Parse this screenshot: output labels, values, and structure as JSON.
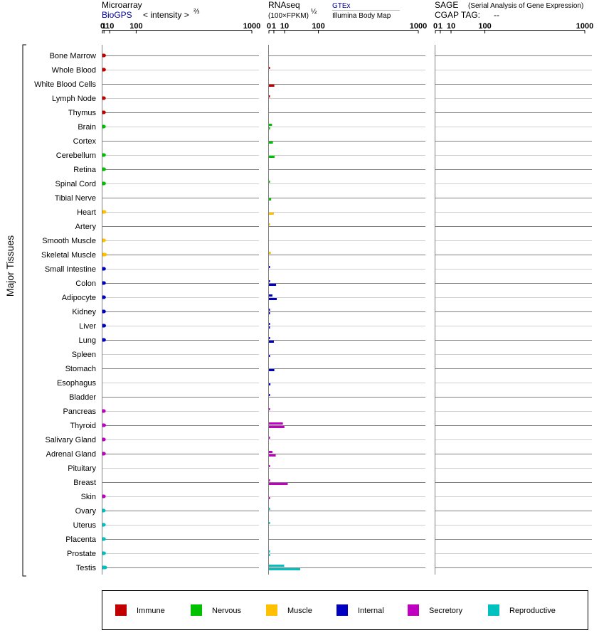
{
  "headers": {
    "microarray": {
      "title": "Microarray",
      "source": "BioGPS",
      "scale_label": "< intensity >",
      "scale_exp": "⅔"
    },
    "rnaseq": {
      "title": "RNAseq",
      "unit": "(100×FPKM)",
      "unit_exp": "½",
      "source1": "GTEx",
      "source2": "Illumina Body Map"
    },
    "sage": {
      "title": "SAGE",
      "subtitle": "(Serial Analysis of Gene Expression)",
      "tag_label": "CGAP TAG:",
      "tag_value": "--"
    }
  },
  "group_label": "Major Tissues",
  "colors": {
    "Immune": "#c00000",
    "Nervous": "#00c000",
    "Muscle": "#ffc000",
    "Internal": "#0000c0",
    "Secretory": "#c000c0",
    "Reproductive": "#00c0c0"
  },
  "legend": [
    {
      "label": "Immune",
      "color": "#c00000"
    },
    {
      "label": "Nervous",
      "color": "#00c000"
    },
    {
      "label": "Muscle",
      "color": "#ffc000"
    },
    {
      "label": "Internal",
      "color": "#0000c0"
    },
    {
      "label": "Secretory",
      "color": "#c000c0"
    },
    {
      "label": "Reproductive",
      "color": "#00c0c0"
    }
  ],
  "chart_data": [
    {
      "type": "bar",
      "panel": "microarray",
      "scale": "power 2/3",
      "ticks": [
        "0",
        "1",
        "10",
        "100",
        "1000"
      ],
      "xlim": [
        0,
        1000
      ],
      "categories": [
        "Bone Marrow",
        "Whole Blood",
        "White Blood Cells",
        "Lymph Node",
        "Thymus",
        "Brain",
        "Cortex",
        "Cerebellum",
        "Retina",
        "Spinal Cord",
        "Tibial Nerve",
        "Heart",
        "Artery",
        "Smooth Muscle",
        "Skeletal Muscle",
        "Small Intestine",
        "Colon",
        "Adipocyte",
        "Kidney",
        "Liver",
        "Lung",
        "Spleen",
        "Stomach",
        "Esophagus",
        "Bladder",
        "Pancreas",
        "Thyroid",
        "Salivary Gland",
        "Adrenal Gland",
        "Pituitary",
        "Breast",
        "Skin",
        "Ovary",
        "Uterus",
        "Placenta",
        "Prostate",
        "Testis"
      ],
      "groups": [
        "Immune",
        "Immune",
        "Immune",
        "Immune",
        "Immune",
        "Nervous",
        "Nervous",
        "Nervous",
        "Nervous",
        "Nervous",
        "Nervous",
        "Muscle",
        "Muscle",
        "Muscle",
        "Muscle",
        "Internal",
        "Internal",
        "Internal",
        "Internal",
        "Internal",
        "Internal",
        "Internal",
        "Internal",
        "Internal",
        "Internal",
        "Secretory",
        "Secretory",
        "Secretory",
        "Secretory",
        "Secretory",
        "Secretory",
        "Secretory",
        "Reproductive",
        "Reproductive",
        "Reproductive",
        "Reproductive",
        "Reproductive"
      ],
      "values": [
        1.1,
        1.1,
        null,
        1.0,
        1.0,
        1.0,
        null,
        1.05,
        1.15,
        1.1,
        null,
        1.5,
        null,
        1.1,
        2.1,
        1.05,
        1.05,
        1.05,
        1.05,
        1.2,
        1.1,
        null,
        null,
        null,
        null,
        0.95,
        1.15,
        0.95,
        1.0,
        null,
        null,
        0.95,
        0.85,
        0.95,
        1.05,
        1.1,
        2.4
      ]
    },
    {
      "type": "bar",
      "panel": "rnaseq",
      "scale": "power 1/2",
      "ticks": [
        "0",
        "1",
        "10",
        "100",
        "1000"
      ],
      "xlim": [
        0,
        1000
      ],
      "series": [
        {
          "name": "GTEx",
          "values": [
            null,
            0.02,
            null,
            0.02,
            null,
            0.4,
            null,
            null,
            null,
            0.02,
            null,
            null,
            0.01,
            null,
            0.15,
            0.02,
            0.02,
            0.5,
            0.02,
            0.02,
            0.02,
            null,
            null,
            null,
            0.02,
            0.02,
            8,
            0.02,
            0.5,
            0.02,
            0.02,
            null,
            0.02,
            0.02,
            null,
            0.02,
            9.5
          ]
        },
        {
          "name": "Illumina Body Map",
          "values": [
            null,
            null,
            1.2,
            null,
            null,
            0.05,
            0.65,
            1.3,
            null,
            null,
            0.2,
            1.0,
            null,
            null,
            null,
            null,
            2.1,
            2.5,
            0.01,
            0.01,
            1.0,
            0.01,
            1.2,
            0.09,
            null,
            null,
            9.8,
            null,
            1.9,
            null,
            14.5,
            0.01,
            null,
            null,
            null,
            0.01,
            40
          ]
        }
      ]
    },
    {
      "type": "bar",
      "panel": "sage",
      "scale": "power 1/2",
      "ticks": [
        "0",
        "1",
        "10",
        "100",
        "1000"
      ],
      "xlim": [
        0,
        1000
      ],
      "values": []
    }
  ]
}
